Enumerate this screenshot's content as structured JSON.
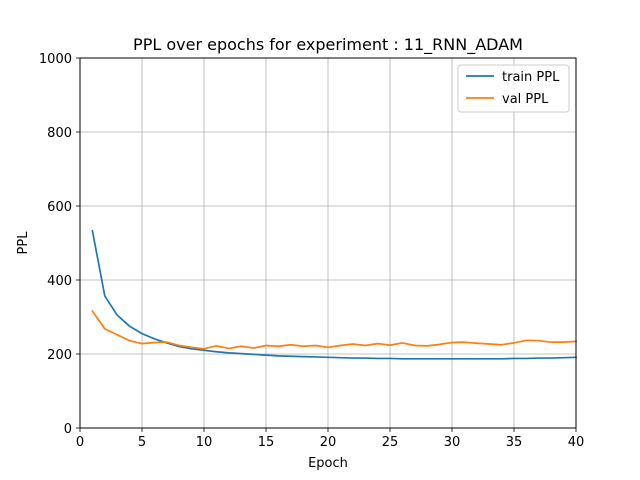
{
  "chart_data": {
    "type": "line",
    "title": "PPL over epochs for experiment : 11_RNN_ADAM",
    "xlabel": "Epoch",
    "ylabel": "PPL",
    "xlim": [
      0,
      40
    ],
    "ylim": [
      0,
      1000
    ],
    "xticks": [
      0,
      5,
      10,
      15,
      20,
      25,
      30,
      35,
      40
    ],
    "yticks": [
      0,
      200,
      400,
      600,
      800,
      1000
    ],
    "grid": true,
    "legend_position": "top-right",
    "x": [
      1,
      2,
      3,
      4,
      5,
      6,
      7,
      8,
      9,
      10,
      11,
      12,
      13,
      14,
      15,
      16,
      17,
      18,
      19,
      20,
      21,
      22,
      23,
      24,
      25,
      26,
      27,
      28,
      29,
      30,
      31,
      32,
      33,
      34,
      35,
      36,
      37,
      38,
      39,
      40
    ],
    "series": [
      {
        "name": "train PPL",
        "color": "#1f77b4",
        "values": [
          533,
          357,
          305,
          275,
          255,
          241,
          230,
          220,
          214,
          210,
          206,
          203,
          201,
          199,
          197,
          195,
          194,
          193,
          192,
          191,
          190,
          189,
          189,
          188,
          188,
          187,
          187,
          187,
          187,
          187,
          187,
          187,
          187,
          187,
          188,
          188,
          189,
          189,
          190,
          191
        ]
      },
      {
        "name": "val PPL",
        "color": "#ff7f0e",
        "values": [
          316,
          268,
          252,
          236,
          228,
          231,
          232,
          223,
          218,
          214,
          222,
          215,
          221,
          216,
          223,
          221,
          225,
          221,
          223,
          218,
          223,
          227,
          223,
          228,
          224,
          230,
          223,
          222,
          226,
          231,
          232,
          229,
          227,
          225,
          230,
          237,
          236,
          232,
          232,
          234
        ]
      }
    ]
  }
}
